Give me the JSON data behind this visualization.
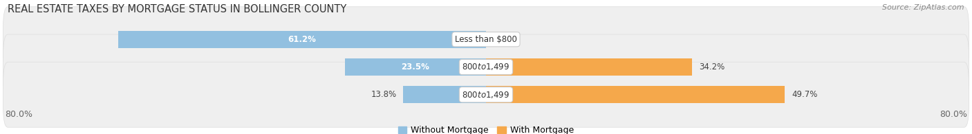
{
  "title": "REAL ESTATE TAXES BY MORTGAGE STATUS IN BOLLINGER COUNTY",
  "source": "Source: ZipAtlas.com",
  "rows": [
    {
      "label": "Less than $800",
      "without_mortgage": 61.2,
      "with_mortgage": 0.0
    },
    {
      "label": "$800 to $1,499",
      "without_mortgage": 23.5,
      "with_mortgage": 34.2
    },
    {
      "label": "$800 to $1,499",
      "without_mortgage": 13.8,
      "with_mortgage": 49.7
    }
  ],
  "xlim_left": -80.0,
  "xlim_right": 80.0,
  "x_left_label": "80.0%",
  "x_right_label": "80.0%",
  "color_without": "#92C0E0",
  "color_with": "#F5A84B",
  "bar_height": 0.62,
  "row_bg_color": "#efefef",
  "row_bg_edge_color": "#dddddd",
  "title_fontsize": 10.5,
  "source_fontsize": 8,
  "label_fontsize": 8.5,
  "bar_label_fontsize": 8.5,
  "legend_fontsize": 9,
  "axis_label_fontsize": 9,
  "legend_without": "Without Mortgage",
  "legend_with": "With Mortgage"
}
